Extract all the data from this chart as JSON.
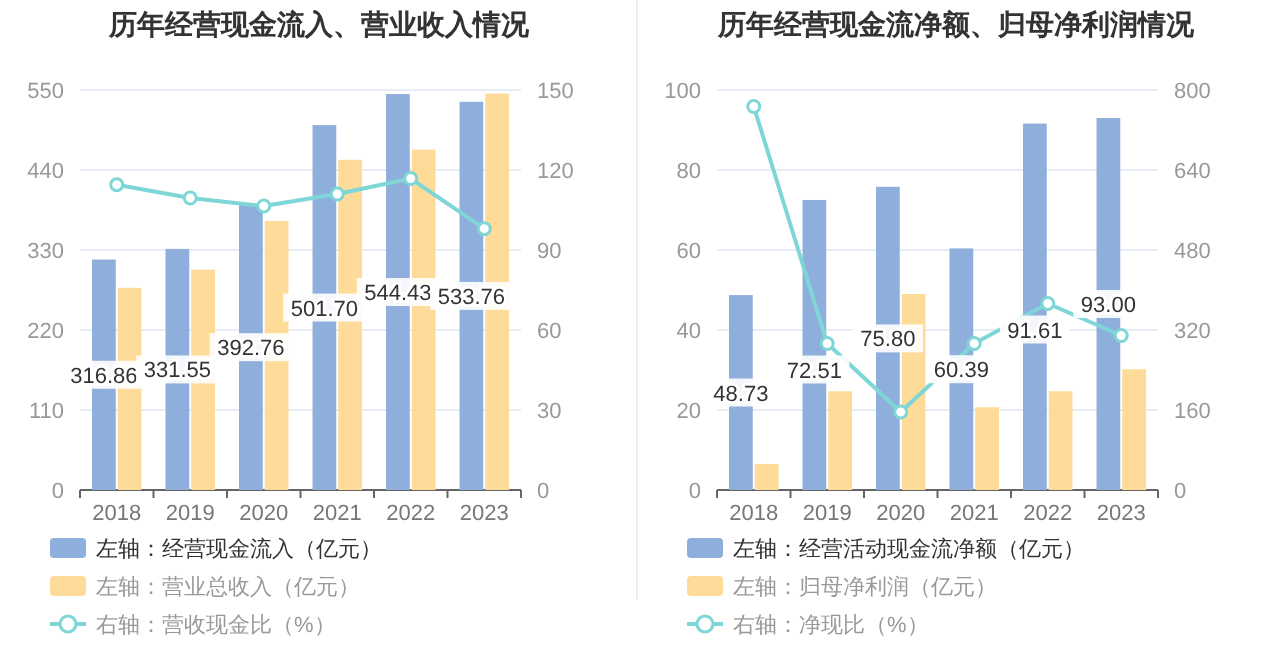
{
  "chart_data": [
    {
      "type": "bar",
      "title": "历年经营现金流入、营业收入情况",
      "categories": [
        "2018",
        "2019",
        "2020",
        "2021",
        "2022",
        "2023"
      ],
      "series": [
        {
          "name": "左轴：经营现金流入（亿元）",
          "color": "#8eaedb",
          "values": [
            316.86,
            331.55,
            392.76,
            501.7,
            544.43,
            533.76
          ],
          "value_labels": [
            "316.86",
            "331.55",
            "392.76",
            "501.70",
            "544.43",
            "533.76"
          ]
        },
        {
          "name": "左轴：营业总收入（亿元）",
          "color": "#ffdb9a",
          "values": [
            278,
            303,
            370,
            454,
            468,
            545
          ]
        },
        {
          "name": "右轴：营收现金比（%）",
          "color": "#7fd6d6",
          "type": "line",
          "axis": "y2",
          "marker": "circle",
          "values": [
            114.5,
            109.5,
            106.5,
            111,
            116.8,
            98
          ]
        }
      ],
      "ylim": [
        0,
        550
      ],
      "yticks": [
        0,
        110,
        220,
        330,
        440,
        550
      ],
      "y2lim": [
        0,
        150
      ],
      "y2ticks": [
        0,
        30,
        60,
        90,
        120,
        150
      ],
      "grid": "y",
      "legend": "bottom"
    },
    {
      "type": "bar",
      "title": "历年经营现金流净额、归母净利润情况",
      "categories": [
        "2018",
        "2019",
        "2020",
        "2021",
        "2022",
        "2023"
      ],
      "series": [
        {
          "name": "左轴：经营活动现金流净额（亿元）",
          "color": "#8eaedb",
          "values": [
            48.73,
            72.51,
            75.8,
            60.39,
            91.61,
            93.0
          ],
          "value_labels": [
            "48.73",
            "72.51",
            "75.80",
            "60.39",
            "91.61",
            "93.00"
          ]
        },
        {
          "name": "左轴：归母净利润（亿元）",
          "color": "#ffdb9a",
          "values": [
            6.5,
            24.7,
            49,
            20.7,
            24.7,
            30.2
          ]
        },
        {
          "name": "右轴：净现比（%）",
          "color": "#7fd6d6",
          "type": "line",
          "axis": "y2",
          "marker": "circle",
          "values": [
            767,
            293,
            156,
            293,
            373,
            309
          ]
        }
      ],
      "ylim": [
        0,
        100
      ],
      "yticks": [
        0,
        20,
        40,
        60,
        80,
        100
      ],
      "y2lim": [
        0,
        800
      ],
      "y2ticks": [
        0,
        160,
        320,
        480,
        640,
        800
      ],
      "grid": "y",
      "legend": "bottom"
    }
  ]
}
